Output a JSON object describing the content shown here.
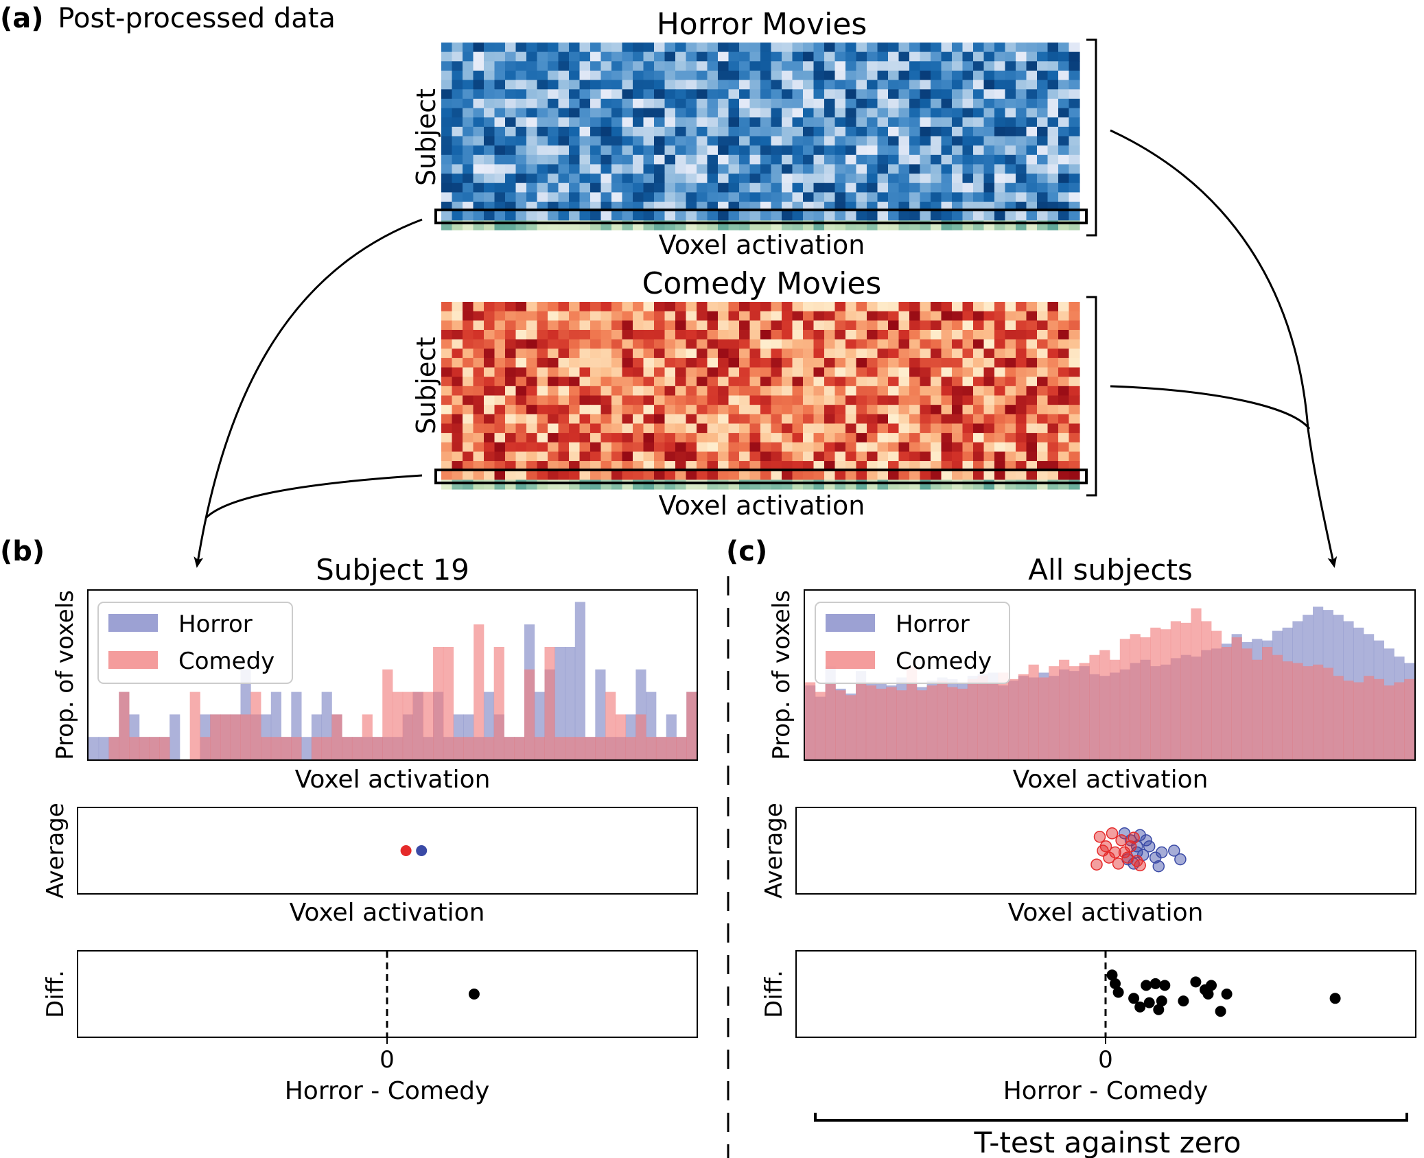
{
  "panel_a": {
    "tag": "(a)",
    "title": "Post-processed data",
    "horror": {
      "title": "Horror Movies",
      "ylabel": "Subject",
      "xlabel": "Voxel activation",
      "rows": 20,
      "cols": 60,
      "colormap": "blues",
      "highlight_row": 19
    },
    "comedy": {
      "title": "Comedy Movies",
      "ylabel": "Subject",
      "xlabel": "Voxel activation",
      "rows": 20,
      "cols": 60,
      "colormap": "reds",
      "highlight_row": 19
    }
  },
  "panel_b": {
    "tag": "(b)",
    "title": "Subject 19",
    "hist_ylabel": "Prop. of voxels",
    "hist_xlabel": "Voxel activation",
    "avg_ylabel": "Average",
    "avg_xlabel": "Voxel activation",
    "diff_ylabel": "Diff.",
    "diff_xlabel": "Horror - Comedy",
    "diff_tick": "0",
    "legend": [
      "Horror",
      "Comedy"
    ]
  },
  "panel_c": {
    "tag": "(c)",
    "title": "All subjects",
    "hist_ylabel": "Prop. of voxels",
    "hist_xlabel": "Voxel activation",
    "avg_ylabel": "Average",
    "avg_xlabel": "Voxel activation",
    "diff_ylabel": "Diff.",
    "diff_xlabel": "Horror - Comedy",
    "diff_tick": "0",
    "legend": [
      "Horror",
      "Comedy"
    ],
    "bracket_label": "T-test against zero"
  },
  "colors": {
    "horror": "#7b82c4",
    "comedy": "#f07b7b",
    "horror_dot": "#3a4aa6",
    "comedy_dot": "#e52a2a",
    "highlight": "#c9dfb8"
  },
  "chart_data": [
    {
      "type": "bar",
      "panel": "b",
      "title": "Subject 19",
      "xlabel": "Voxel activation",
      "ylabel": "Prop. of voxels",
      "bins": 60,
      "series": [
        {
          "name": "Horror",
          "values": [
            1,
            1,
            1,
            3,
            2,
            1,
            1,
            1,
            2,
            0,
            0,
            2,
            2,
            2,
            2,
            4,
            2,
            2,
            3,
            1,
            3,
            1,
            2,
            3,
            2,
            1,
            1,
            1,
            1,
            1,
            1,
            2,
            3,
            1,
            3,
            1,
            2,
            2,
            1,
            3,
            2,
            1,
            1,
            6,
            3,
            4,
            5,
            5,
            7,
            1,
            4,
            1,
            1,
            2,
            4,
            3,
            1,
            2,
            1,
            3
          ]
        },
        {
          "name": "Comedy",
          "values": [
            0,
            0,
            1,
            3,
            1,
            1,
            1,
            1,
            0,
            0,
            3,
            1,
            2,
            2,
            2,
            2,
            3,
            1,
            1,
            1,
            1,
            0,
            1,
            1,
            2,
            1,
            1,
            2,
            1,
            4,
            3,
            3,
            3,
            3,
            5,
            5,
            1,
            1,
            6,
            1,
            5,
            1,
            1,
            4,
            1,
            5,
            1,
            1,
            1,
            1,
            1,
            3,
            2,
            1,
            2,
            1,
            1,
            1,
            1,
            3
          ]
        }
      ]
    },
    {
      "type": "bar",
      "panel": "c",
      "title": "All subjects",
      "xlabel": "Voxel activation",
      "ylabel": "Prop. of voxels",
      "bins": 60,
      "series": [
        {
          "name": "Horror",
          "values": [
            4.6,
            3.9,
            5.8,
            4.4,
            4.1,
            5.5,
            4.8,
            4.7,
            4.6,
            5.1,
            4.8,
            4.5,
            4.9,
            5.1,
            5.0,
            4.7,
            5.2,
            5.3,
            5.4,
            4.6,
            4.9,
            5.2,
            5.1,
            5.4,
            5.2,
            5.6,
            5.5,
            5.8,
            5.3,
            5.2,
            5.4,
            5.6,
            6.0,
            6.2,
            5.8,
            5.9,
            6.3,
            6.5,
            6.4,
            6.8,
            6.9,
            7.2,
            7.8,
            7.3,
            7.5,
            7.4,
            8.0,
            8.2,
            8.6,
            9.0,
            9.5,
            9.3,
            9.0,
            8.6,
            8.2,
            7.8,
            7.4,
            6.9,
            6.4,
            6.0
          ]
        },
        {
          "name": "Comedy",
          "values": [
            4.8,
            4.2,
            4.7,
            4.3,
            4.0,
            4.8,
            4.6,
            4.4,
            4.5,
            4.3,
            5.8,
            4.3,
            4.6,
            4.9,
            4.5,
            4.4,
            5.0,
            5.2,
            4.8,
            5.4,
            5.0,
            5.3,
            5.9,
            5.1,
            5.8,
            6.2,
            5.8,
            6.0,
            6.5,
            6.8,
            6.2,
            7.5,
            7.8,
            7.6,
            8.2,
            8.1,
            8.6,
            8.5,
            9.4,
            8.6,
            8.0,
            7.0,
            7.6,
            6.9,
            6.2,
            7.0,
            6.5,
            6.1,
            6.0,
            5.8,
            5.9,
            5.7,
            5.2,
            4.9,
            4.8,
            5.2,
            5.0,
            4.6,
            4.8,
            5.0
          ]
        }
      ]
    },
    {
      "type": "scatter",
      "panel": "b",
      "ylabel": "Average",
      "xlabel": "Voxel activation",
      "xlim": [
        -1,
        1
      ],
      "points": [
        {
          "series": "Comedy",
          "x": 0.06,
          "y": 0.5
        },
        {
          "series": "Horror",
          "x": 0.11,
          "y": 0.5
        }
      ]
    },
    {
      "type": "scatter",
      "panel": "c",
      "ylabel": "Average",
      "xlabel": "Voxel activation",
      "xlim": [
        -1,
        1
      ],
      "points": [
        {
          "series": "Horror",
          "x": 0.06,
          "y": 0.7
        },
        {
          "series": "Horror",
          "x": 0.08,
          "y": 0.62
        },
        {
          "series": "Horror",
          "x": 0.1,
          "y": 0.55
        },
        {
          "series": "Horror",
          "x": 0.12,
          "y": 0.45
        },
        {
          "series": "Horror",
          "x": 0.07,
          "y": 0.4
        },
        {
          "series": "Horror",
          "x": 0.13,
          "y": 0.62
        },
        {
          "series": "Horror",
          "x": 0.09,
          "y": 0.35
        },
        {
          "series": "Horror",
          "x": 0.18,
          "y": 0.48
        },
        {
          "series": "Horror",
          "x": 0.22,
          "y": 0.5
        },
        {
          "series": "Horror",
          "x": 0.17,
          "y": 0.32
        },
        {
          "series": "Horror",
          "x": 0.11,
          "y": 0.68
        },
        {
          "series": "Horror",
          "x": 0.14,
          "y": 0.55
        },
        {
          "series": "Horror",
          "x": 0.16,
          "y": 0.42
        },
        {
          "series": "Horror",
          "x": 0.1,
          "y": 0.48
        },
        {
          "series": "Horror",
          "x": 0.24,
          "y": 0.4
        },
        {
          "series": "Comedy",
          "x": -0.02,
          "y": 0.66
        },
        {
          "series": "Comedy",
          "x": 0.0,
          "y": 0.55
        },
        {
          "series": "Comedy",
          "x": 0.03,
          "y": 0.48
        },
        {
          "series": "Comedy",
          "x": 0.05,
          "y": 0.62
        },
        {
          "series": "Comedy",
          "x": 0.07,
          "y": 0.42
        },
        {
          "series": "Comedy",
          "x": 0.04,
          "y": 0.35
        },
        {
          "series": "Comedy",
          "x": -0.03,
          "y": 0.34
        },
        {
          "series": "Comedy",
          "x": 0.02,
          "y": 0.7
        },
        {
          "series": "Comedy",
          "x": 0.08,
          "y": 0.55
        },
        {
          "series": "Comedy",
          "x": 0.1,
          "y": 0.38
        },
        {
          "series": "Comedy",
          "x": 0.01,
          "y": 0.42
        },
        {
          "series": "Comedy",
          "x": 0.06,
          "y": 0.48
        },
        {
          "series": "Comedy",
          "x": 0.09,
          "y": 0.65
        },
        {
          "series": "Comedy",
          "x": 0.11,
          "y": 0.33
        },
        {
          "series": "Comedy",
          "x": -0.01,
          "y": 0.5
        }
      ]
    },
    {
      "type": "scatter",
      "panel": "b",
      "ylabel": "Diff.",
      "xlabel": "Horror - Comedy",
      "xlim": [
        -1,
        1
      ],
      "xticks": [
        0
      ],
      "points": [
        {
          "x": 0.28,
          "y": 0.5
        }
      ]
    },
    {
      "type": "scatter",
      "panel": "c",
      "ylabel": "Diff.",
      "xlabel": "Horror - Comedy",
      "xlim": [
        -1,
        1
      ],
      "xticks": [
        0
      ],
      "points": [
        {
          "x": 0.02,
          "y": 0.72
        },
        {
          "x": 0.03,
          "y": 0.62
        },
        {
          "x": 0.04,
          "y": 0.52
        },
        {
          "x": 0.09,
          "y": 0.45
        },
        {
          "x": 0.11,
          "y": 0.35
        },
        {
          "x": 0.13,
          "y": 0.6
        },
        {
          "x": 0.14,
          "y": 0.4
        },
        {
          "x": 0.16,
          "y": 0.62
        },
        {
          "x": 0.17,
          "y": 0.32
        },
        {
          "x": 0.18,
          "y": 0.42
        },
        {
          "x": 0.19,
          "y": 0.6
        },
        {
          "x": 0.25,
          "y": 0.42
        },
        {
          "x": 0.29,
          "y": 0.64
        },
        {
          "x": 0.32,
          "y": 0.55
        },
        {
          "x": 0.33,
          "y": 0.5
        },
        {
          "x": 0.34,
          "y": 0.6
        },
        {
          "x": 0.37,
          "y": 0.3
        },
        {
          "x": 0.39,
          "y": 0.5
        },
        {
          "x": 0.74,
          "y": 0.45
        }
      ]
    }
  ]
}
